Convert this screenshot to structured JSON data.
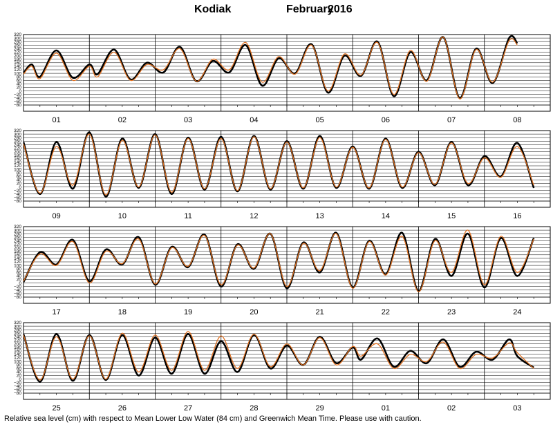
{
  "header": {
    "station": "Kodiak",
    "month": "February",
    "year": "2016"
  },
  "footer": {
    "note": "Relative sea level (cm) with respect to Mean Lower Low Water (84 cm) and Greenwich Mean Time. Please use with caution."
  },
  "colors": {
    "observed": "#000000",
    "predicted": "#e07020",
    "grid": "#000000"
  },
  "chart_data": {
    "type": "line",
    "ylim": [
      -80,
      320
    ],
    "yticks": [
      320,
      300,
      280,
      260,
      240,
      220,
      200,
      180,
      160,
      140,
      120,
      100,
      80,
      60,
      40,
      20,
      0,
      -20,
      -40,
      -60,
      -80
    ],
    "ytick_labels": [
      "320",
      "300",
      "280",
      "260",
      "240",
      "220",
      "200",
      "180",
      "160",
      "140",
      "120",
      "100",
      "80",
      "60",
      "40",
      "20",
      "0",
      "−20",
      "−40",
      "−60",
      "−80"
    ],
    "grid": true,
    "series_styles": [
      {
        "key": "observed",
        "color": "#000000"
      },
      {
        "key": "predicted",
        "color": "#e07020"
      }
    ],
    "panels": [
      {
        "days": [
          "01",
          "02",
          "03",
          "04",
          "05",
          "06",
          "07",
          "08"
        ],
        "observed": [
          [
            0,
            100
          ],
          [
            0.125,
            150
          ],
          [
            0.25,
            80
          ],
          [
            0.5,
            230
          ],
          [
            0.75,
            75
          ],
          [
            1,
            150
          ],
          [
            1.125,
            95
          ],
          [
            1.375,
            235
          ],
          [
            1.625,
            65
          ],
          [
            1.875,
            160
          ],
          [
            2.125,
            105
          ],
          [
            2.375,
            250
          ],
          [
            2.625,
            55
          ],
          [
            2.875,
            170
          ],
          [
            3.125,
            105
          ],
          [
            3.375,
            260
          ],
          [
            3.625,
            30
          ],
          [
            3.875,
            185
          ],
          [
            4.125,
            100
          ],
          [
            4.375,
            265
          ],
          [
            4.625,
            -10
          ],
          [
            4.875,
            200
          ],
          [
            5.125,
            85
          ],
          [
            5.375,
            280
          ],
          [
            5.625,
            -30
          ],
          [
            5.875,
            220
          ],
          [
            6.125,
            60
          ],
          [
            6.375,
            305
          ],
          [
            6.625,
            -40
          ],
          [
            6.875,
            240
          ],
          [
            7.125,
            45
          ],
          [
            7.375,
            300
          ],
          [
            7.5,
            270
          ]
        ],
        "predicted": [
          [
            0,
            95
          ],
          [
            0.125,
            140
          ],
          [
            0.25,
            70
          ],
          [
            0.5,
            215
          ],
          [
            0.75,
            60
          ],
          [
            1,
            140
          ],
          [
            1.125,
            80
          ],
          [
            1.375,
            220
          ],
          [
            1.625,
            60
          ],
          [
            1.875,
            150
          ],
          [
            2.125,
            120
          ],
          [
            2.375,
            240
          ],
          [
            2.625,
            55
          ],
          [
            2.875,
            180
          ],
          [
            3.125,
            120
          ],
          [
            3.375,
            275
          ],
          [
            3.625,
            50
          ],
          [
            3.875,
            195
          ],
          [
            4.125,
            95
          ],
          [
            4.375,
            260
          ],
          [
            4.625,
            0
          ],
          [
            4.875,
            210
          ],
          [
            5.125,
            90
          ],
          [
            5.375,
            275
          ],
          [
            5.625,
            -20
          ],
          [
            5.875,
            230
          ],
          [
            6.125,
            55
          ],
          [
            6.375,
            305
          ],
          [
            6.625,
            -45
          ],
          [
            6.875,
            235
          ],
          [
            7.125,
            50
          ],
          [
            7.375,
            285
          ],
          [
            7.5,
            260
          ]
        ]
      },
      {
        "days": [
          "09",
          "10",
          "11",
          "12",
          "13",
          "14",
          "15",
          "16"
        ],
        "observed": [
          [
            0,
            255
          ],
          [
            0.25,
            -40
          ],
          [
            0.5,
            255
          ],
          [
            0.75,
            -10
          ],
          [
            1,
            310
          ],
          [
            1.25,
            -55
          ],
          [
            1.5,
            275
          ],
          [
            1.75,
            -5
          ],
          [
            2,
            300
          ],
          [
            2.25,
            -40
          ],
          [
            2.5,
            280
          ],
          [
            2.75,
            -15
          ],
          [
            3,
            285
          ],
          [
            3.25,
            -25
          ],
          [
            3.5,
            290
          ],
          [
            3.75,
            -15
          ],
          [
            4,
            260
          ],
          [
            4.25,
            -10
          ],
          [
            4.5,
            290
          ],
          [
            4.75,
            -5
          ],
          [
            5,
            230
          ],
          [
            5.25,
            -10
          ],
          [
            5.5,
            275
          ],
          [
            5.75,
            -5
          ],
          [
            6,
            200
          ],
          [
            6.25,
            10
          ],
          [
            6.5,
            255
          ],
          [
            6.75,
            10
          ],
          [
            7,
            175
          ],
          [
            7.25,
            60
          ],
          [
            7.5,
            250
          ],
          [
            7.75,
            -5
          ]
        ],
        "predicted": [
          [
            0,
            245
          ],
          [
            0.25,
            -35
          ],
          [
            0.5,
            230
          ],
          [
            0.75,
            10
          ],
          [
            1,
            300
          ],
          [
            1.25,
            -45
          ],
          [
            1.5,
            265
          ],
          [
            1.75,
            0
          ],
          [
            2,
            295
          ],
          [
            2.25,
            -30
          ],
          [
            2.5,
            275
          ],
          [
            2.75,
            -10
          ],
          [
            3,
            275
          ],
          [
            3.25,
            -20
          ],
          [
            3.5,
            285
          ],
          [
            3.75,
            -10
          ],
          [
            4,
            255
          ],
          [
            4.25,
            -5
          ],
          [
            4.5,
            280
          ],
          [
            4.75,
            0
          ],
          [
            5,
            225
          ],
          [
            5.25,
            -5
          ],
          [
            5.5,
            270
          ],
          [
            5.75,
            0
          ],
          [
            6,
            195
          ],
          [
            6.25,
            15
          ],
          [
            6.5,
            250
          ],
          [
            6.75,
            20
          ],
          [
            7,
            165
          ],
          [
            7.25,
            55
          ],
          [
            7.5,
            230
          ],
          [
            7.75,
            10
          ]
        ]
      },
      {
        "days": [
          "17",
          "18",
          "19",
          "20",
          "21",
          "22",
          "23",
          "24"
        ],
        "observed": [
          [
            0,
            5
          ],
          [
            0.25,
            175
          ],
          [
            0.5,
            105
          ],
          [
            0.75,
            245
          ],
          [
            1,
            10
          ],
          [
            1.25,
            190
          ],
          [
            1.5,
            105
          ],
          [
            1.75,
            260
          ],
          [
            2,
            -10
          ],
          [
            2.25,
            205
          ],
          [
            2.5,
            90
          ],
          [
            2.75,
            275
          ],
          [
            3,
            -20
          ],
          [
            3.25,
            220
          ],
          [
            3.5,
            80
          ],
          [
            3.75,
            280
          ],
          [
            4,
            -30
          ],
          [
            4.25,
            230
          ],
          [
            4.5,
            60
          ],
          [
            4.75,
            285
          ],
          [
            5,
            -25
          ],
          [
            5.25,
            240
          ],
          [
            5.5,
            50
          ],
          [
            5.75,
            285
          ],
          [
            6,
            -45
          ],
          [
            6.25,
            250
          ],
          [
            6.5,
            40
          ],
          [
            6.75,
            280
          ],
          [
            7,
            -25
          ],
          [
            7.25,
            255
          ],
          [
            7.5,
            40
          ],
          [
            7.75,
            255
          ]
        ],
        "predicted": [
          [
            0,
            10
          ],
          [
            0.25,
            165
          ],
          [
            0.5,
            100
          ],
          [
            0.75,
            235
          ],
          [
            1,
            0
          ],
          [
            1.25,
            180
          ],
          [
            1.5,
            110
          ],
          [
            1.75,
            250
          ],
          [
            2,
            -5
          ],
          [
            2.25,
            200
          ],
          [
            2.5,
            95
          ],
          [
            2.75,
            270
          ],
          [
            3,
            -10
          ],
          [
            3.25,
            215
          ],
          [
            3.5,
            85
          ],
          [
            3.75,
            280
          ],
          [
            4,
            -20
          ],
          [
            4.25,
            225
          ],
          [
            4.5,
            70
          ],
          [
            4.75,
            280
          ],
          [
            5,
            -30
          ],
          [
            5.25,
            235
          ],
          [
            5.5,
            45
          ],
          [
            5.75,
            265
          ],
          [
            6,
            -50
          ],
          [
            6.25,
            240
          ],
          [
            6.5,
            60
          ],
          [
            6.75,
            300
          ],
          [
            7,
            -10
          ],
          [
            7.25,
            265
          ],
          [
            7.5,
            60
          ],
          [
            7.75,
            250
          ]
        ]
      },
      {
        "days": [
          "25",
          "26",
          "27",
          "28",
          "29",
          "01",
          "02",
          "03"
        ],
        "observed": [
          [
            0,
            255
          ],
          [
            0.25,
            -15
          ],
          [
            0.5,
            255
          ],
          [
            0.75,
            -10
          ],
          [
            1,
            250
          ],
          [
            1.25,
            -5
          ],
          [
            1.5,
            250
          ],
          [
            1.75,
            20
          ],
          [
            2,
            235
          ],
          [
            2.25,
            30
          ],
          [
            2.5,
            255
          ],
          [
            2.75,
            30
          ],
          [
            3,
            215
          ],
          [
            3.25,
            40
          ],
          [
            3.5,
            250
          ],
          [
            3.75,
            60
          ],
          [
            4,
            190
          ],
          [
            4.25,
            80
          ],
          [
            4.5,
            240
          ],
          [
            4.75,
            90
          ],
          [
            5,
            180
          ],
          [
            5.125,
            110
          ],
          [
            5.375,
            230
          ],
          [
            5.625,
            70
          ],
          [
            5.875,
            160
          ],
          [
            6.125,
            90
          ],
          [
            6.375,
            225
          ],
          [
            6.625,
            70
          ],
          [
            6.875,
            155
          ],
          [
            7.125,
            110
          ],
          [
            7.375,
            225
          ],
          [
            7.5,
            130
          ],
          [
            7.75,
            65
          ]
        ],
        "predicted": [
          [
            0,
            250
          ],
          [
            0.25,
            -5
          ],
          [
            0.5,
            240
          ],
          [
            0.75,
            0
          ],
          [
            1,
            245
          ],
          [
            1.25,
            0
          ],
          [
            1.5,
            260
          ],
          [
            1.75,
            40
          ],
          [
            2,
            250
          ],
          [
            2.25,
            50
          ],
          [
            2.5,
            270
          ],
          [
            2.75,
            50
          ],
          [
            3,
            245
          ],
          [
            3.25,
            60
          ],
          [
            3.5,
            255
          ],
          [
            3.75,
            70
          ],
          [
            4,
            200
          ],
          [
            4.25,
            80
          ],
          [
            4.5,
            235
          ],
          [
            4.75,
            80
          ],
          [
            5,
            185
          ],
          [
            5.125,
            130
          ],
          [
            5.375,
            200
          ],
          [
            5.625,
            60
          ],
          [
            5.875,
            140
          ],
          [
            6.125,
            100
          ],
          [
            6.375,
            210
          ],
          [
            6.625,
            60
          ],
          [
            6.875,
            140
          ],
          [
            7.125,
            120
          ],
          [
            7.375,
            205
          ],
          [
            7.5,
            150
          ],
          [
            7.75,
            60
          ]
        ]
      }
    ]
  }
}
